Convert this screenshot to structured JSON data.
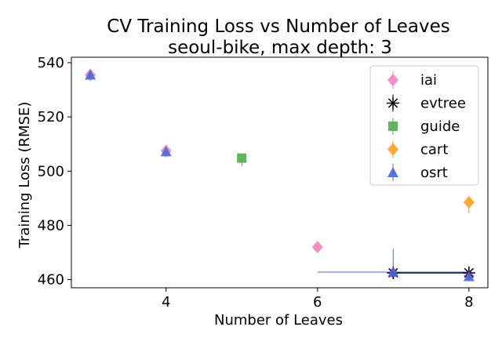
{
  "chart_data": {
    "type": "scatter",
    "title": "CV Training Loss vs Number of Leaves",
    "subtitle": "seoul-bike, max depth: 3",
    "xlabel": "Number of Leaves",
    "ylabel": "Training Loss (RMSE)",
    "xlim": [
      2.75,
      8.25
    ],
    "ylim": [
      457,
      542
    ],
    "xticks": [
      4,
      6,
      8
    ],
    "yticks": [
      460,
      480,
      500,
      520,
      540
    ],
    "grid": false,
    "legend_position": "top-right",
    "series": [
      {
        "name": "iai",
        "marker": "diamond",
        "color": "#f781bf",
        "points": [
          {
            "x": 3,
            "y": 535.5
          },
          {
            "x": 4,
            "y": 507.5
          },
          {
            "x": 6,
            "y": 472
          },
          {
            "x": 7,
            "y": 462.5
          },
          {
            "x": 8,
            "y": 461.5
          }
        ]
      },
      {
        "name": "evtree",
        "marker": "star",
        "color": "#000000",
        "points": [
          {
            "x": 7,
            "y": 462.5,
            "xerr": [
              0,
              1
            ],
            "yerr": [
              1,
              1
            ]
          },
          {
            "x": 8,
            "y": 462.5
          }
        ]
      },
      {
        "name": "guide",
        "marker": "square",
        "color": "#4daf4a",
        "points": [
          {
            "x": 5,
            "y": 504.8,
            "yerr": [
              3,
              0
            ]
          }
        ]
      },
      {
        "name": "cart",
        "marker": "diamond",
        "color": "#ff9f1c",
        "points": [
          {
            "x": 8,
            "y": 488.5,
            "yerr": [
              4,
              0
            ]
          }
        ]
      },
      {
        "name": "osrt",
        "marker": "triangle",
        "color": "#4169e1",
        "points": [
          {
            "x": 3,
            "y": 535.5
          },
          {
            "x": 4,
            "y": 507.2,
            "yerr": [
              2,
              0
            ]
          },
          {
            "x": 7,
            "y": 462.8,
            "xerr": [
              1,
              1
            ],
            "yerr": [
              2,
              8.5
            ]
          },
          {
            "x": 8,
            "y": 461.2
          }
        ]
      }
    ]
  }
}
